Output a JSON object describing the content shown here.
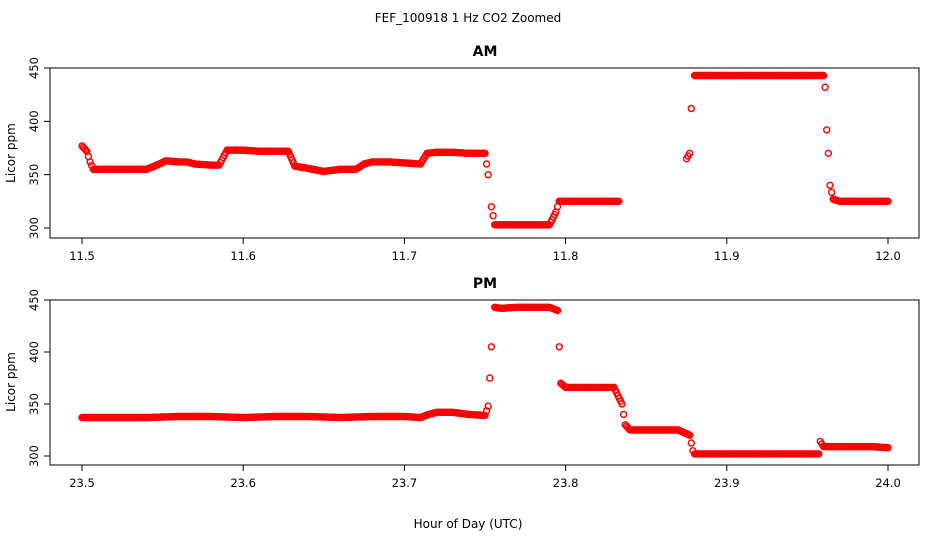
{
  "title": "FEF_100918  1 Hz CO2 Zoomed",
  "xlabel": "Hour of Day (UTC)",
  "colors": {
    "points": "#ff0000",
    "axes": "#000000",
    "background": "#ffffff"
  },
  "chart_data": [
    {
      "type": "scatter",
      "title": "AM",
      "xlabel": "",
      "ylabel": "Licor ppm",
      "xlim": [
        11.5,
        12.0
      ],
      "ylim": [
        300,
        450
      ],
      "xticks": [
        "11.5",
        "11.6",
        "11.7",
        "11.8",
        "11.9",
        "12.0"
      ],
      "yticks": [
        "300",
        "350",
        "400",
        "450"
      ],
      "grid": false,
      "series": [
        {
          "marker": "open-circle",
          "x": [
            11.5,
            11.503,
            11.505,
            11.507,
            11.51,
            11.52,
            11.53,
            11.54,
            11.548,
            11.552,
            11.56,
            11.565,
            11.57,
            11.58,
            11.585,
            11.59,
            11.6,
            11.61,
            11.62,
            11.628,
            11.632,
            11.64,
            11.65,
            11.66,
            11.67,
            11.675,
            11.68,
            11.69,
            11.7,
            11.71,
            11.714,
            11.72,
            11.73,
            11.74,
            11.75,
            11.752,
            11.754,
            11.756,
            11.76,
            11.77,
            11.78,
            11.79,
            11.794,
            11.796,
            11.8,
            11.81,
            11.82,
            11.833,
            11.875,
            11.877,
            11.878,
            11.88,
            11.89,
            11.9,
            11.91,
            11.92,
            11.93,
            11.94,
            11.95,
            11.96,
            11.961,
            11.962,
            11.963,
            11.964,
            11.966,
            11.97,
            11.98,
            11.99,
            12.0
          ],
          "y": [
            377,
            372,
            362,
            355,
            355,
            355,
            355,
            355,
            360,
            363,
            362,
            362,
            360,
            359,
            359,
            373,
            373,
            372,
            372,
            372,
            358,
            356,
            353,
            355,
            355,
            360,
            362,
            362,
            361,
            360,
            370,
            371,
            371,
            370,
            370,
            350,
            320,
            303,
            303,
            303,
            303,
            303,
            315,
            325,
            325,
            325,
            325,
            325,
            365,
            370,
            412,
            443,
            443,
            443,
            443,
            443,
            443,
            443,
            443,
            443,
            432,
            392,
            370,
            340,
            327,
            325,
            325,
            325,
            325
          ]
        }
      ]
    },
    {
      "type": "scatter",
      "title": "PM",
      "xlabel": "",
      "ylabel": "Licor ppm",
      "xlim": [
        23.5,
        24.0
      ],
      "ylim": [
        300,
        450
      ],
      "xticks": [
        "23.5",
        "23.6",
        "23.7",
        "23.8",
        "23.9",
        "24.0"
      ],
      "yticks": [
        "300",
        "350",
        "400",
        "450"
      ],
      "grid": false,
      "series": [
        {
          "marker": "open-circle",
          "x": [
            23.5,
            23.52,
            23.54,
            23.56,
            23.58,
            23.6,
            23.62,
            23.64,
            23.66,
            23.68,
            23.7,
            23.71,
            23.715,
            23.72,
            23.73,
            23.74,
            23.75,
            23.752,
            23.753,
            23.754,
            23.756,
            23.76,
            23.77,
            23.78,
            23.79,
            23.795,
            23.796,
            23.797,
            23.8,
            23.81,
            23.82,
            23.83,
            23.835,
            23.837,
            23.84,
            23.85,
            23.86,
            23.87,
            23.877,
            23.879,
            23.88,
            23.89,
            23.9,
            23.92,
            23.94,
            23.957,
            23.958,
            23.96,
            23.97,
            23.98,
            23.99,
            24.0
          ],
          "y": [
            337,
            337,
            337,
            338,
            338,
            337,
            338,
            338,
            337,
            338,
            338,
            337,
            340,
            342,
            342,
            340,
            339,
            348,
            375,
            405,
            443,
            442,
            443,
            443,
            443,
            440,
            405,
            370,
            366,
            366,
            366,
            366,
            350,
            330,
            325,
            325,
            325,
            325,
            320,
            305,
            302,
            302,
            302,
            302,
            302,
            302,
            314,
            309,
            309,
            309,
            309,
            308
          ]
        }
      ]
    }
  ]
}
